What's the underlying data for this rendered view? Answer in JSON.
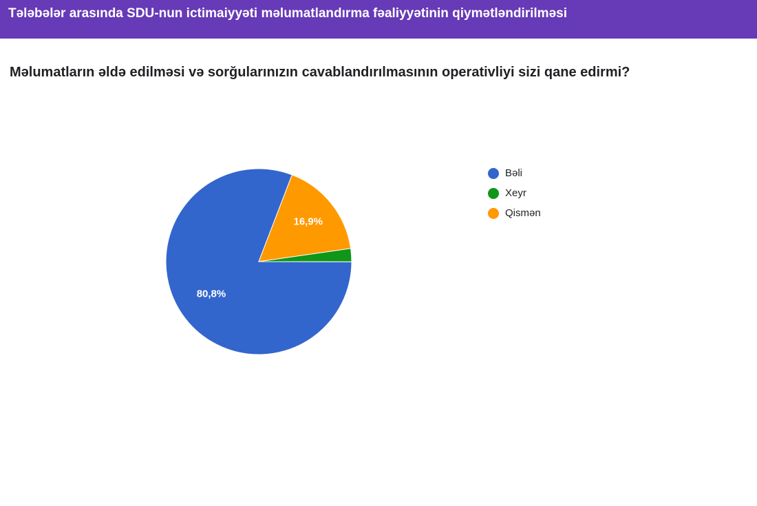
{
  "chart_data": {
    "type": "pie",
    "title": "Tələbələr arasında SDU-nun ictimaiyyəti məlumatlandırma fəaliyyətinin qiymətləndirilməsi",
    "subtitle": "Məlumatların əldə edilməsi və sorğularınızın cavablandırılmasının operativliyi sizi qane edirmi?",
    "categories": [
      "Bəli",
      "Xeyr",
      "Qismən"
    ],
    "values": [
      80.8,
      2.3,
      16.9
    ],
    "value_labels": [
      "80,8%",
      null,
      "16,9%"
    ],
    "colors": [
      "#3366cc",
      "#109618",
      "#ff9900"
    ],
    "legend": "right"
  }
}
